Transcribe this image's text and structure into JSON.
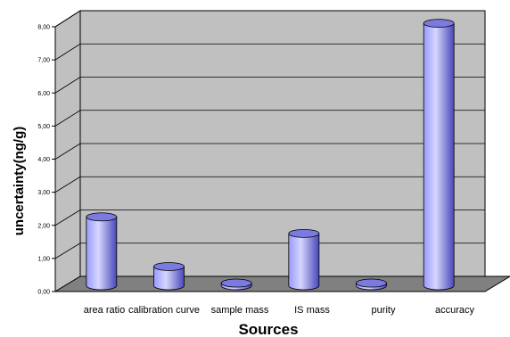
{
  "chart_data": {
    "type": "bar",
    "categories": [
      "area ratio",
      "calibration curve",
      "sample mass",
      "IS mass",
      "purity",
      "accuracy"
    ],
    "values": [
      2.08,
      0.58,
      0.08,
      1.58,
      0.08,
      7.93
    ],
    "y_ticks": [
      "0,00",
      "1,00",
      "2,00",
      "3,00",
      "4,00",
      "5,00",
      "6,00",
      "7,00",
      "8,00"
    ],
    "ylim": [
      0,
      8
    ],
    "xlabel": "Sources",
    "ylabel": "uncertainty(ng/g)",
    "grid": true,
    "legend": "none"
  },
  "colors": {
    "plot_wall": "#c0c0c0",
    "floor": "#808080",
    "bar_light": "#d6d6ff",
    "bar_mid": "#9999ff",
    "bar_dark": "#4747b8",
    "bar_top": "#7a7ae0"
  }
}
